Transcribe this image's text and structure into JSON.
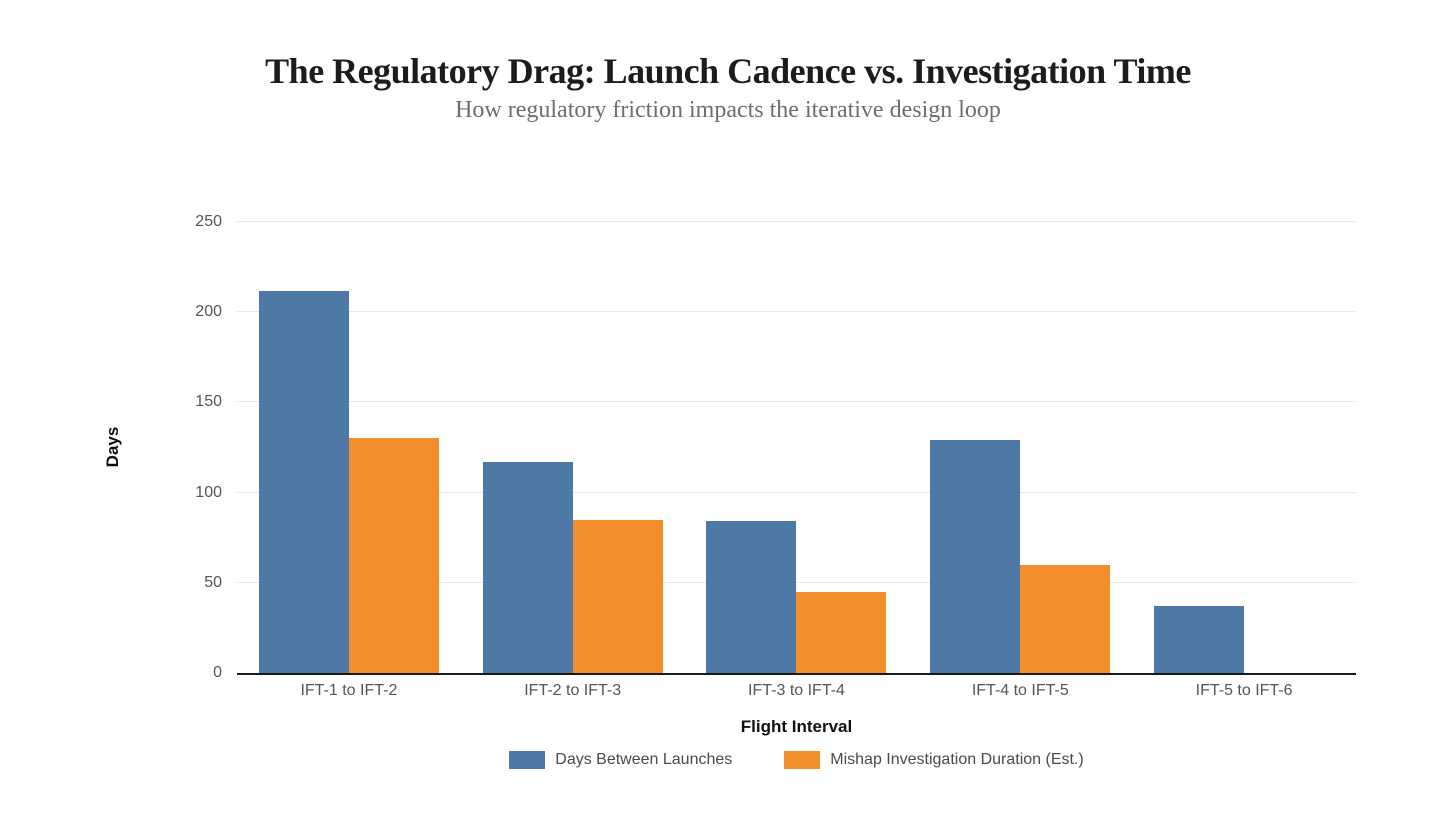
{
  "page": {
    "title": "The Regulatory Drag: Launch Cadence vs. Investigation Time",
    "subtitle": "How regulatory friction impacts the iterative design loop"
  },
  "chart_data": {
    "type": "bar",
    "title": "The Regulatory Drag: Launch Cadence vs. Investigation Time",
    "subtitle": "How regulatory friction impacts the iterative design loop",
    "categories": [
      "IFT-1 to IFT-2",
      "IFT-2 to IFT-3",
      "IFT-3 to IFT-4",
      "IFT-4 to IFT-5",
      "IFT-5 to IFT-6"
    ],
    "series": [
      {
        "name": "Days Between Launches",
        "color": "#4e79a7",
        "values": [
          212,
          117,
          84,
          129,
          37
        ]
      },
      {
        "name": "Mishap Investigation Duration (Est.)",
        "color": "#f28e2b",
        "values": [
          130,
          85,
          45,
          60,
          0
        ]
      }
    ],
    "xlabel": "Flight Interval",
    "ylabel": "Days",
    "ylim": [
      0,
      250
    ],
    "yticks": [
      0,
      50,
      100,
      150,
      200,
      250
    ],
    "grid": true,
    "grid_axis": "y",
    "legend_position": "bottom"
  }
}
